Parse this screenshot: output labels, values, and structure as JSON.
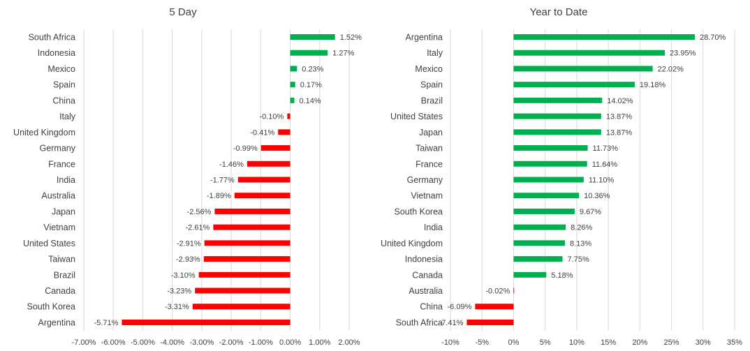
{
  "chart_data": [
    {
      "type": "bar",
      "orientation": "horizontal",
      "title": "5 Day",
      "categories": [
        "South Africa",
        "Indonesia",
        "Mexico",
        "Spain",
        "China",
        "Italy",
        "United Kingdom",
        "Germany",
        "France",
        "India",
        "Australia",
        "Japan",
        "Vietnam",
        "United States",
        "Taiwan",
        "Brazil",
        "Canada",
        "South Korea",
        "Argentina"
      ],
      "values": [
        1.52,
        1.27,
        0.23,
        0.17,
        0.14,
        -0.1,
        -0.41,
        -0.99,
        -1.46,
        -1.77,
        -1.89,
        -2.56,
        -2.61,
        -2.91,
        -2.93,
        -3.1,
        -3.23,
        -3.31,
        -5.71
      ],
      "value_labels": [
        "1.52%",
        "1.27%",
        "0.23%",
        "0.17%",
        "0.14%",
        "-0.10%",
        "-0.41%",
        "-0.99%",
        "-1.46%",
        "-1.77%",
        "-1.89%",
        "-2.56%",
        "-2.61%",
        "-2.91%",
        "-2.93%",
        "-3.10%",
        "-3.23%",
        "-3.31%",
        "-5.71%"
      ],
      "xlim": [
        -7,
        2
      ],
      "xticks": [
        "-7.00%",
        "-6.00%",
        "-5.00%",
        "-4.00%",
        "-3.00%",
        "-2.00%",
        "-1.00%",
        "0.00%",
        "1.00%",
        "2.00%"
      ],
      "xlabel": "",
      "ylabel": "",
      "grid": true,
      "colors": {
        "positive": "#00b050",
        "negative": "#ff0000"
      }
    },
    {
      "type": "bar",
      "orientation": "horizontal",
      "title": "Year to Date",
      "categories": [
        "Argentina",
        "Italy",
        "Mexico",
        "Spain",
        "Brazil",
        "United States",
        "Japan",
        "Taiwan",
        "France",
        "Germany",
        "Vietnam",
        "South Korea",
        "India",
        "United Kingdom",
        "Indonesia",
        "Canada",
        "Australia",
        "China",
        "South Africa"
      ],
      "values": [
        28.7,
        23.95,
        22.02,
        19.18,
        14.02,
        13.87,
        13.87,
        11.73,
        11.64,
        11.1,
        10.36,
        9.67,
        8.26,
        8.13,
        7.75,
        5.18,
        -0.02,
        -6.09,
        -7.41
      ],
      "value_labels": [
        "28.70%",
        "23.95%",
        "22.02%",
        "19.18%",
        "14.02%",
        "13.87%",
        "13.87%",
        "11.73%",
        "11.64%",
        "11.10%",
        "10.36%",
        "9.67%",
        "8.26%",
        "8.13%",
        "7.75%",
        "5.18%",
        "-0.02%",
        "-6.09%",
        "-7.41%"
      ],
      "xlim": [
        -10,
        35
      ],
      "xticks": [
        "-10%",
        "-5%",
        "0%",
        "5%",
        "10%",
        "15%",
        "20%",
        "25%",
        "30%",
        "35%"
      ],
      "xlabel": "",
      "ylabel": "",
      "grid": true,
      "colors": {
        "positive": "#00b050",
        "negative": "#ff0000"
      }
    }
  ]
}
